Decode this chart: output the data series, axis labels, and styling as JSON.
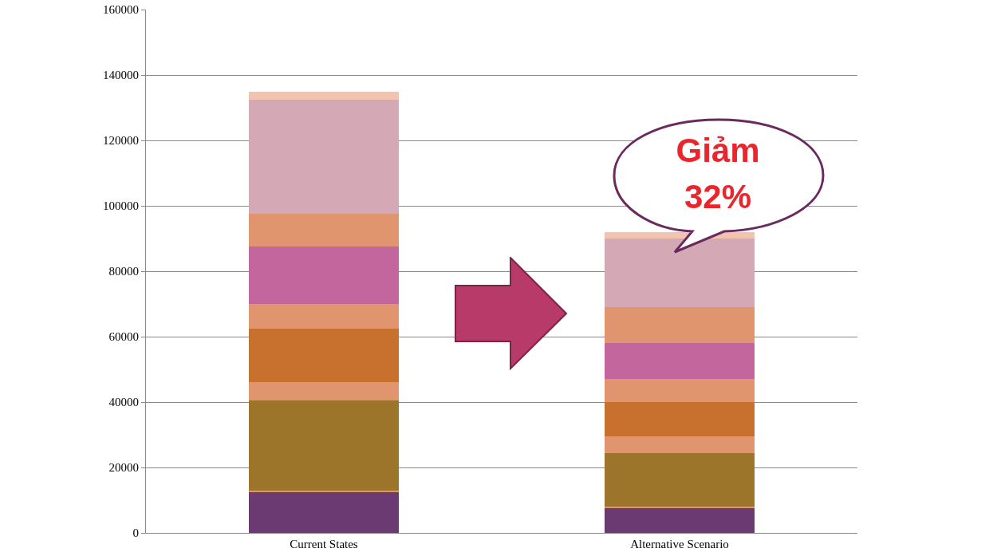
{
  "chart_data": {
    "type": "bar",
    "stacked": true,
    "categories": [
      "Current States",
      "Alternative Scenario"
    ],
    "series": [
      {
        "color": "#6b3a72",
        "values": [
          12500,
          7500
        ]
      },
      {
        "color": "#e0956e",
        "values": [
          500,
          500
        ]
      },
      {
        "color": "#9c752b",
        "values": [
          27500,
          16500
        ]
      },
      {
        "color": "#e0956e",
        "values": [
          5500,
          5000
        ]
      },
      {
        "color": "#c8702e",
        "values": [
          16500,
          10500
        ]
      },
      {
        "color": "#e0956e",
        "values": [
          7500,
          7000
        ]
      },
      {
        "color": "#c4669e",
        "values": [
          17500,
          11000
        ]
      },
      {
        "color": "#e0956e",
        "values": [
          10000,
          11000
        ]
      },
      {
        "color": "#d4a9b5",
        "values": [
          35000,
          21000
        ]
      },
      {
        "color": "#f2c4b0",
        "values": [
          2500,
          2000
        ]
      }
    ],
    "ylim": [
      0,
      160000
    ],
    "yticks": [
      0,
      20000,
      40000,
      60000,
      80000,
      100000,
      120000,
      140000,
      160000
    ],
    "grid": "y",
    "annotations": [
      "Giảm 32%"
    ]
  }
}
